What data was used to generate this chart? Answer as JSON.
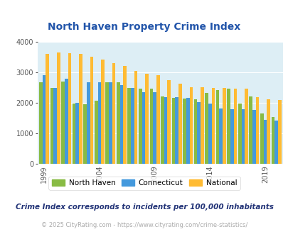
{
  "title": "North Haven Property Crime Index",
  "title_color": "#2255aa",
  "plot_bg_color": "#ddeef5",
  "years": [
    1999,
    2000,
    2001,
    2002,
    2003,
    2004,
    2005,
    2006,
    2007,
    2008,
    2009,
    2010,
    2011,
    2012,
    2013,
    2014,
    2015,
    2016,
    2017,
    2018,
    2019,
    2020
  ],
  "north_haven": [
    2670,
    2500,
    2700,
    1980,
    1950,
    2070,
    2680,
    2680,
    2500,
    2460,
    2480,
    2220,
    2160,
    2140,
    2120,
    2330,
    2420,
    2470,
    1990,
    2210,
    1660,
    1530
  ],
  "connecticut": [
    2920,
    2500,
    2790,
    2000,
    2670,
    2680,
    2680,
    2590,
    2500,
    2350,
    2360,
    2190,
    2180,
    2160,
    2020,
    1970,
    1810,
    1800,
    1800,
    1770,
    1450,
    1430
  ],
  "national": [
    3620,
    3650,
    3640,
    3610,
    3520,
    3430,
    3300,
    3220,
    3050,
    2960,
    2910,
    2750,
    2640,
    2510,
    2510,
    2490,
    2500,
    2470,
    2460,
    2200,
    2120,
    2100
  ],
  "north_haven_color": "#88bb44",
  "connecticut_color": "#4499dd",
  "national_color": "#ffbb33",
  "ylim": [
    0,
    4000
  ],
  "yticks": [
    0,
    1000,
    2000,
    3000,
    4000
  ],
  "xtick_labels": [
    "1999",
    "2004",
    "2009",
    "2014",
    "2019"
  ],
  "xtick_years": [
    1999,
    2004,
    2009,
    2014,
    2019
  ],
  "legend_labels": [
    "North Haven",
    "Connecticut",
    "National"
  ],
  "footnote1": "Crime Index corresponds to incidents per 100,000 inhabitants",
  "footnote2": "© 2025 CityRating.com - https://www.cityrating.com/crime-statistics/",
  "footnote1_color": "#223377",
  "footnote2_color": "#aaaaaa"
}
